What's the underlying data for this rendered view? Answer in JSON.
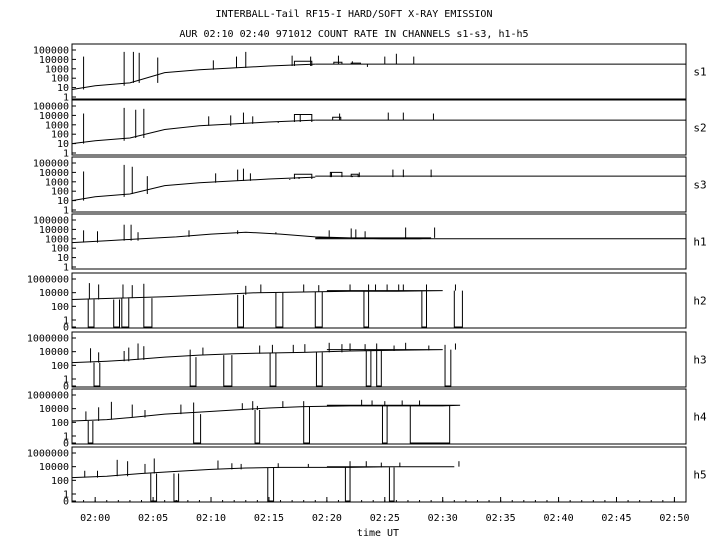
{
  "chart_data": {
    "type": "line",
    "title": "INTERBALL-Tail RF15-I HARD/SOFT X-RAY EMISSION",
    "subtitle": "AUR 02:10 02:40 971012  COUNT RATE IN CHANNELS s1-s3, h1-h5",
    "xlabel": "time UT",
    "x_ticks": [
      "02:00",
      "02:05",
      "02:10",
      "02:15",
      "02:20",
      "02:25",
      "02:30",
      "02:35",
      "02:40",
      "02:45",
      "02:50"
    ],
    "xlim": [
      "01:58",
      "02:51"
    ],
    "y_scale": "log",
    "panels": [
      {
        "name": "s1",
        "ticks": [
          "100000",
          "10000",
          "1000",
          "100",
          "10",
          "1"
        ],
        "data_end": "02:19",
        "baseline": [
          [
            0,
            0.8
          ],
          [
            2,
            1.2
          ],
          [
            5,
            1.5
          ],
          [
            8,
            2.6
          ],
          [
            11,
            2.9
          ],
          [
            14,
            3.1
          ],
          [
            17,
            3.3
          ],
          [
            21,
            3.5
          ]
        ],
        "spikes": [
          [
            1,
            4.3
          ],
          [
            4.5,
            4.8
          ],
          [
            5.3,
            4.8
          ],
          [
            5.8,
            4.7
          ],
          [
            7.4,
            4.2
          ],
          [
            12.2,
            3.9
          ],
          [
            14.2,
            4.3
          ],
          [
            15,
            4.8
          ],
          [
            19,
            4.4
          ],
          [
            20.6,
            4.3
          ],
          [
            23,
            4.4
          ],
          [
            24.2,
            3.8
          ],
          [
            25.5,
            3.2
          ],
          [
            27,
            4.3
          ],
          [
            28,
            4.6
          ],
          [
            29.5,
            4.3
          ]
        ],
        "boxes": [
          [
            19.2,
            20.7,
            3.8
          ],
          [
            22.6,
            23.3,
            3.7
          ],
          [
            24.1,
            24.9,
            3.6
          ]
        ],
        "hold": 3.5
      },
      {
        "name": "s2",
        "ticks": [
          "100000",
          "10000",
          "1000",
          "100",
          "10",
          "1"
        ],
        "data_end": "02:19",
        "baseline": [
          [
            0,
            1.0
          ],
          [
            2,
            1.3
          ],
          [
            5,
            1.6
          ],
          [
            8,
            2.5
          ],
          [
            11,
            2.9
          ],
          [
            14,
            3.1
          ],
          [
            17,
            3.3
          ],
          [
            21,
            3.5
          ]
        ],
        "spikes": [
          [
            1,
            4.2
          ],
          [
            4.5,
            4.8
          ],
          [
            5.5,
            4.6
          ],
          [
            6.2,
            4.7
          ],
          [
            11.8,
            3.9
          ],
          [
            13.7,
            4.0
          ],
          [
            14.8,
            4.3
          ],
          [
            15.6,
            3.9
          ],
          [
            17.8,
            3.2
          ],
          [
            19.7,
            4.1
          ],
          [
            23.1,
            4.2
          ],
          [
            27.3,
            4.3
          ],
          [
            28.6,
            4.3
          ],
          [
            31.2,
            4.2
          ]
        ],
        "boxes": [
          [
            19.2,
            20.7,
            4.1
          ],
          [
            22.5,
            23.2,
            3.8
          ]
        ],
        "hold": 3.5
      },
      {
        "name": "s3",
        "ticks": [
          "100000",
          "10000",
          "1000",
          "100",
          "10",
          "1"
        ],
        "data_end": "02:19",
        "baseline": [
          [
            0,
            1.0
          ],
          [
            2,
            1.4
          ],
          [
            5,
            1.7
          ],
          [
            8,
            2.6
          ],
          [
            11,
            2.9
          ],
          [
            14,
            3.1
          ],
          [
            17,
            3.3
          ],
          [
            21,
            3.5
          ]
        ],
        "spikes": [
          [
            1,
            4.1
          ],
          [
            4.5,
            4.8
          ],
          [
            5.2,
            4.6
          ],
          [
            6.5,
            3.6
          ],
          [
            12.4,
            3.9
          ],
          [
            14.3,
            4.3
          ],
          [
            14.8,
            4.4
          ],
          [
            15.4,
            3.9
          ],
          [
            18.8,
            3.2
          ],
          [
            19.6,
            3.5
          ],
          [
            22.4,
            4.0
          ],
          [
            24.2,
            3.6
          ],
          [
            24.8,
            4.0
          ],
          [
            27.7,
            4.3
          ],
          [
            28.6,
            4.3
          ],
          [
            31,
            4.3
          ]
        ],
        "boxes": [
          [
            19.2,
            20.7,
            3.8
          ],
          [
            22.3,
            23.3,
            4.0
          ],
          [
            24.1,
            24.7,
            3.8
          ]
        ],
        "hold": 3.6
      },
      {
        "name": "h1",
        "ticks": [
          "100000",
          "10000",
          "1000",
          "100",
          "10",
          "1"
        ],
        "data_end": "02:19",
        "baseline": [
          [
            0,
            2.6
          ],
          [
            3,
            2.8
          ],
          [
            6,
            3.0
          ],
          [
            9,
            3.2
          ],
          [
            12,
            3.5
          ],
          [
            15,
            3.7
          ],
          [
            18,
            3.5
          ],
          [
            21,
            3.2
          ],
          [
            24,
            3.1
          ],
          [
            27,
            3.0
          ],
          [
            30,
            3.0
          ],
          [
            31,
            3.1
          ]
        ],
        "spikes": [
          [
            1,
            3.9
          ],
          [
            2.2,
            3.8
          ],
          [
            4.5,
            4.5
          ],
          [
            5.1,
            4.5
          ],
          [
            5.7,
            3.7
          ],
          [
            10.1,
            3.9
          ],
          [
            14.3,
            3.9
          ],
          [
            17.6,
            3.5
          ],
          [
            22.2,
            3.9
          ],
          [
            24.1,
            4.1
          ],
          [
            24.5,
            4.0
          ],
          [
            25.3,
            3.8
          ],
          [
            28.8,
            4.2
          ],
          [
            31.3,
            4.2
          ]
        ],
        "boxes": [],
        "hold": 3.0
      },
      {
        "name": "h2",
        "ticks": [
          "1000000",
          "10000",
          "100",
          "1",
          "0"
        ],
        "data_end": "02:20",
        "baseline": [
          [
            0,
            3.0
          ],
          [
            4,
            3.2
          ],
          [
            8,
            3.4
          ],
          [
            12,
            3.7
          ],
          [
            16,
            4.0
          ],
          [
            20,
            4.1
          ],
          [
            24,
            4.2
          ],
          [
            28,
            4.2
          ],
          [
            32,
            4.3
          ]
        ],
        "spikes": [
          [
            1.5,
            5.4
          ],
          [
            2.3,
            5.2
          ],
          [
            4.4,
            5.2
          ],
          [
            5.2,
            5.1
          ],
          [
            6.2,
            5.3
          ],
          [
            15,
            5.0
          ],
          [
            16.3,
            5.2
          ],
          [
            20,
            5.2
          ],
          [
            21.3,
            5.1
          ],
          [
            24,
            5.2
          ],
          [
            25.6,
            5.2
          ],
          [
            26.2,
            5.2
          ],
          [
            27.2,
            5.2
          ],
          [
            28.2,
            5.2
          ],
          [
            28.6,
            5.2
          ],
          [
            30.6,
            5.2
          ],
          [
            33.1,
            5.2
          ]
        ],
        "drops": [
          [
            1.4,
            1.9
          ],
          [
            3.6,
            4.1
          ],
          [
            4.3,
            4.9
          ],
          [
            6.2,
            6.9
          ],
          [
            14.3,
            14.8
          ],
          [
            17.6,
            18.2
          ],
          [
            21,
            21.6
          ],
          [
            25.2,
            25.6
          ],
          [
            30.2,
            30.6
          ],
          [
            33,
            33.7
          ]
        ],
        "boxes": [],
        "hold": null
      },
      {
        "name": "h3",
        "ticks": [
          "1000000",
          "10000",
          "100",
          "1",
          "0"
        ],
        "data_end": "02:20",
        "baseline": [
          [
            0,
            2.4
          ],
          [
            3,
            2.6
          ],
          [
            5,
            2.8
          ],
          [
            8,
            3.2
          ],
          [
            11,
            3.5
          ],
          [
            14,
            3.7
          ],
          [
            17,
            3.8
          ],
          [
            20,
            3.9
          ],
          [
            24,
            4.1
          ],
          [
            28,
            4.2
          ],
          [
            32,
            4.3
          ]
        ],
        "spikes": [
          [
            1.6,
            4.5
          ],
          [
            2.3,
            3.9
          ],
          [
            4.5,
            4.1
          ],
          [
            4.9,
            4.6
          ],
          [
            5.7,
            5.2
          ],
          [
            6.2,
            4.8
          ],
          [
            10.2,
            4.3
          ],
          [
            11.3,
            4.6
          ],
          [
            16.2,
            4.9
          ],
          [
            17.3,
            5.0
          ],
          [
            19.1,
            5.0
          ],
          [
            20.1,
            5.1
          ],
          [
            22.2,
            5.3
          ],
          [
            23.3,
            5.1
          ],
          [
            24,
            5.2
          ],
          [
            25.3,
            5.1
          ],
          [
            26.3,
            5.2
          ],
          [
            27.8,
            4.9
          ],
          [
            28.8,
            5.3
          ],
          [
            30.8,
            4.9
          ],
          [
            32.2,
            5.0
          ],
          [
            33.1,
            5.2
          ]
        ],
        "drops": [
          [
            1.9,
            2.4
          ],
          [
            10.2,
            10.7
          ],
          [
            13.1,
            13.8
          ],
          [
            17.1,
            17.6
          ],
          [
            21.1,
            21.6
          ],
          [
            25.4,
            25.8
          ],
          [
            26.3,
            26.7
          ],
          [
            32.2,
            32.7
          ]
        ],
        "boxes": [],
        "hold": null
      },
      {
        "name": "h4",
        "ticks": [
          "1000000",
          "10000",
          "100",
          "1",
          "0"
        ],
        "data_end": "02:20",
        "baseline": [
          [
            0,
            2.2
          ],
          [
            3,
            2.4
          ],
          [
            5,
            2.7
          ],
          [
            8,
            3.2
          ],
          [
            11,
            3.5
          ],
          [
            14,
            3.8
          ],
          [
            17,
            4.1
          ],
          [
            20,
            4.3
          ],
          [
            24,
            4.4
          ],
          [
            28,
            4.4
          ],
          [
            32,
            4.4
          ],
          [
            33.5,
            4.5
          ]
        ],
        "spikes": [
          [
            1.2,
            3.6
          ],
          [
            2.3,
            4.2
          ],
          [
            3.4,
            5.0
          ],
          [
            5.2,
            4.6
          ],
          [
            6.3,
            3.8
          ],
          [
            9.4,
            4.6
          ],
          [
            10.5,
            4.9
          ],
          [
            14.7,
            4.8
          ],
          [
            15.6,
            5.1
          ],
          [
            16,
            4.4
          ],
          [
            18.2,
            5.1
          ],
          [
            20,
            5.1
          ],
          [
            25,
            5.3
          ],
          [
            25.9,
            5.2
          ],
          [
            27,
            5.1
          ],
          [
            28.5,
            5.2
          ],
          [
            30,
            5.2
          ]
        ],
        "drops": [
          [
            1.4,
            1.8
          ],
          [
            10.5,
            11.1
          ],
          [
            15.8,
            16.2
          ],
          [
            20,
            20.5
          ],
          [
            26.8,
            27.2
          ],
          [
            29.2,
            32.6
          ]
        ],
        "boxes": [],
        "hold": null
      },
      {
        "name": "h5",
        "ticks": [
          "1000000",
          "10000",
          "100",
          "1",
          "0"
        ],
        "data_end": "02:20",
        "baseline": [
          [
            0,
            2.4
          ],
          [
            3,
            2.6
          ],
          [
            6,
            3.0
          ],
          [
            9,
            3.3
          ],
          [
            12,
            3.6
          ],
          [
            15,
            3.8
          ],
          [
            18,
            3.9
          ],
          [
            21,
            3.9
          ],
          [
            24,
            3.9
          ],
          [
            28,
            4.0
          ],
          [
            33,
            4.0
          ]
        ],
        "spikes": [
          [
            1.1,
            3.4
          ],
          [
            2.2,
            3.4
          ],
          [
            3.9,
            5.0
          ],
          [
            4.8,
            4.8
          ],
          [
            6.3,
            4.4
          ],
          [
            7.1,
            5.2
          ],
          [
            12.6,
            4.9
          ],
          [
            13.8,
            4.5
          ],
          [
            14.6,
            4.4
          ],
          [
            17.8,
            4.5
          ],
          [
            20.4,
            4.4
          ],
          [
            24,
            4.8
          ],
          [
            25.4,
            4.8
          ],
          [
            26.7,
            4.6
          ],
          [
            28.3,
            4.6
          ],
          [
            33.4,
            4.8
          ]
        ],
        "drops": [
          [
            6.8,
            7.3
          ],
          [
            8.8,
            9.2
          ],
          [
            16.9,
            17.4
          ],
          [
            23.6,
            24
          ],
          [
            27.4,
            27.8
          ]
        ],
        "boxes": [],
        "hold": null
      }
    ]
  }
}
